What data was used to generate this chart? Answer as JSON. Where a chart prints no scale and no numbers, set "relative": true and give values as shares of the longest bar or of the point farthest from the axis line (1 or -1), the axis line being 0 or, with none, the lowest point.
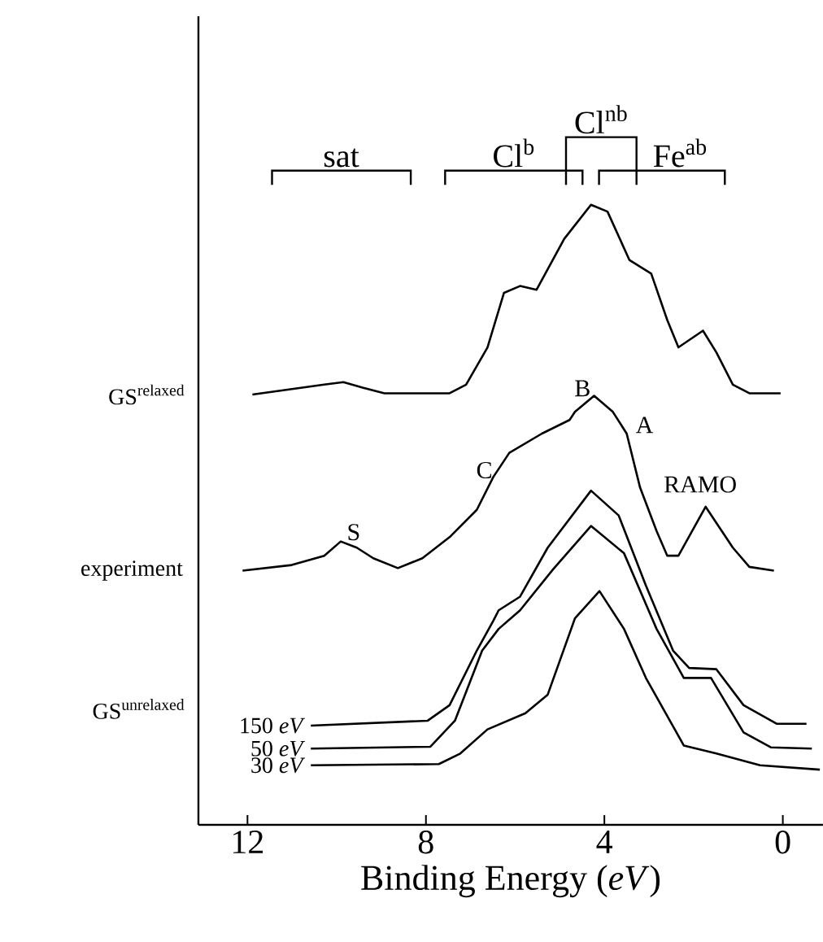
{
  "chart_data": {
    "type": "line",
    "relative": true,
    "xlabel": "Binding Energy (*eV*)",
    "xlim": [
      13.1,
      -0.9
    ],
    "xticks": [
      12,
      8,
      4,
      0
    ],
    "series": [
      {
        "color": "#000000",
        "x": [
          11.89,
          10.28,
          9.85,
          9.42,
          8.93,
          7.47,
          7.1,
          6.62,
          6.25,
          5.89,
          5.52,
          4.9,
          4.3,
          3.93,
          3.44,
          2.95,
          2.59,
          2.34,
          1.79,
          1.49,
          1.12,
          0.75,
          0.05
        ],
        "values": [
          0.694,
          0.71,
          0.714,
          0.705,
          0.696,
          0.696,
          0.71,
          0.77,
          0.858,
          0.869,
          0.863,
          0.945,
          1.0,
          0.989,
          0.911,
          0.889,
          0.814,
          0.77,
          0.797,
          0.762,
          0.71,
          0.696,
          0.696
        ]
      },
      {
        "name": "experiment",
        "color": "#000000",
        "x": [
          12.11,
          11.01,
          10.28,
          9.91,
          9.55,
          9.18,
          8.63,
          8.08,
          7.47,
          6.86,
          6.49,
          6.13,
          5.4,
          4.78,
          4.66,
          4.23,
          3.81,
          3.5,
          3.2,
          2.83,
          2.59,
          2.34,
          1.73,
          1.12,
          0.75,
          0.2
        ],
        "values": [
          0.41,
          0.419,
          0.434,
          0.457,
          0.447,
          0.43,
          0.414,
          0.43,
          0.464,
          0.508,
          0.561,
          0.6,
          0.631,
          0.653,
          0.666,
          0.692,
          0.666,
          0.631,
          0.544,
          0.474,
          0.434,
          0.434,
          0.513,
          0.447,
          0.416,
          0.41
        ]
      },
      {
        "name": "150 *eV*",
        "color": "#000000",
        "x": [
          10.58,
          7.96,
          7.47,
          6.86,
          6.49,
          6.37,
          5.89,
          5.27,
          4.3,
          3.68,
          3.07,
          2.46,
          2.1,
          1.49,
          0.88,
          0.14,
          -0.53
        ],
        "values": [
          0.16,
          0.168,
          0.193,
          0.281,
          0.329,
          0.346,
          0.368,
          0.447,
          0.539,
          0.499,
          0.386,
          0.281,
          0.253,
          0.251,
          0.193,
          0.163,
          0.163
        ]
      },
      {
        "name": "50 *eV*",
        "color": "#000000",
        "x": [
          10.58,
          7.9,
          7.35,
          6.74,
          6.37,
          5.89,
          5.15,
          4.3,
          3.56,
          2.83,
          2.22,
          1.61,
          0.88,
          0.27,
          -0.65
        ],
        "values": [
          0.123,
          0.126,
          0.168,
          0.281,
          0.316,
          0.346,
          0.412,
          0.482,
          0.438,
          0.316,
          0.237,
          0.237,
          0.149,
          0.125,
          0.123
        ]
      },
      {
        "name": "30 *eV*",
        "color": "#000000",
        "x": [
          10.58,
          7.71,
          7.23,
          6.62,
          5.77,
          5.27,
          4.66,
          4.11,
          3.56,
          3.07,
          2.22,
          1.49,
          0.51,
          -0.83
        ],
        "values": [
          0.096,
          0.098,
          0.115,
          0.154,
          0.18,
          0.21,
          0.333,
          0.377,
          0.316,
          0.237,
          0.128,
          0.115,
          0.096,
          0.089
        ]
      }
    ],
    "annotations": [
      "S",
      "C",
      "B",
      "A",
      "RAMO",
      "\\mathrm{GS}^{\\mathrm{unrelaxed}}",
      "\\mathrm{GS}^{\\mathrm{relaxed}}",
      "sat",
      "Cl$^{b}$",
      "Cl$^{nb}$",
      "Fe$^{ab}$"
    ]
  }
}
